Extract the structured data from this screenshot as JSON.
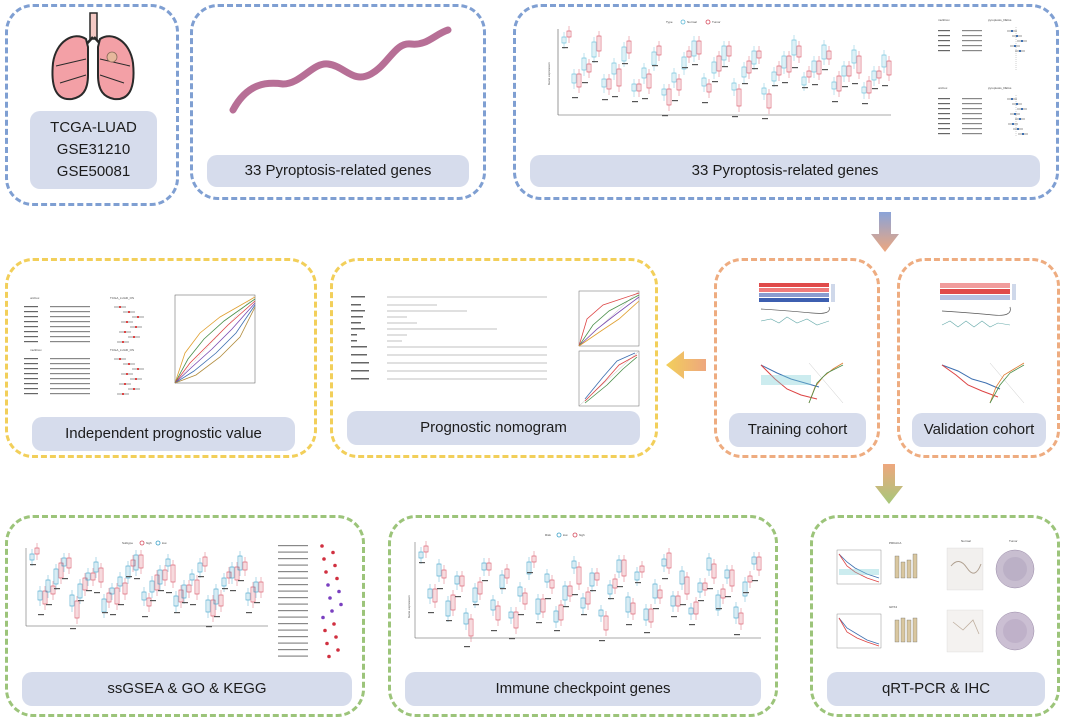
{
  "colors": {
    "blue": "#7f9fd2",
    "yellow": "#f2cf5a",
    "orange": "#eeac80",
    "green": "#9cc47a",
    "label_bg": "#d6dcec"
  },
  "panels": {
    "datasets": {
      "lines": [
        "TCGA-LUAD",
        "GSE31210",
        "GSE50081"
      ]
    },
    "genes_curve": {
      "label": "33 Pyroptosis-related genes"
    },
    "genes_boxplot": {
      "label": "33 Pyroptosis-related genes"
    },
    "training": {
      "label": "Training cohort"
    },
    "validation": {
      "label": "Validation cohort"
    },
    "nomogram": {
      "label": "Prognostic nomogram"
    },
    "independent": {
      "label": "Independent prognostic value"
    },
    "ssgsea": {
      "label": "ssGSEA & GO & KEGG"
    },
    "checkpoint": {
      "label": "Immune checkpoint genes"
    },
    "qpcr": {
      "label": "qRT-PCR & IHC"
    }
  },
  "mini": {
    "boxplot_legend_title": "Type",
    "boxplot_legend_items": [
      "Normal",
      "Tumor"
    ],
    "boxplot_ylabel": "Gene expression",
    "forest_uni": "uniCox",
    "forest_uni_title": "pyroptosis_DEGs",
    "forest_multi": "multiCox",
    "forest_multi_title": "pyroptosis_DEGs",
    "roc_title_1": "TCGA_LUAD_OS",
    "roc_title_2": "TCGA_LUAD_OS",
    "ssgsea_legend_title": "Subtype",
    "ssgsea_legend_items": [
      "high",
      "low"
    ],
    "checkpoint_legend_title": "Risk",
    "checkpoint_legend_items": [
      "low",
      "high"
    ],
    "ihc_normal": "Normal",
    "ihc_tumor": "Tumor",
    "qpcr_gene_1": "PRKACA",
    "qpcr_gene_2": "GPX4"
  }
}
